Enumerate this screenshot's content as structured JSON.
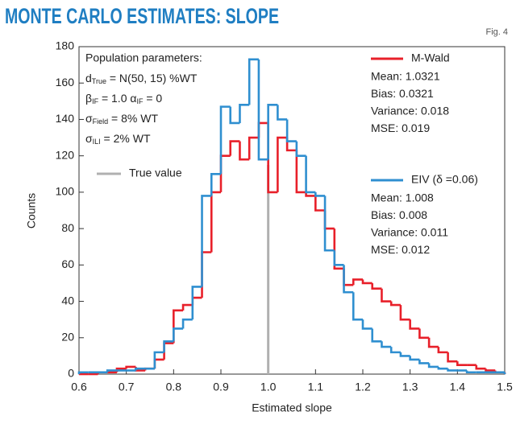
{
  "chart_data": {
    "type": "histogram",
    "title": "MONTE CARLO ESTIMATES: SLOPE",
    "figure_label": "Fig. 4",
    "x_label": "Estimated slope",
    "y_label": "Counts",
    "xlim": [
      0.6,
      1.5
    ],
    "ylim": [
      0,
      180
    ],
    "xticks": [
      0.6,
      0.7,
      0.8,
      0.9,
      {
        "value": 1,
        "label": "1.0"
      },
      1.1,
      1.2,
      1.3,
      1.4,
      1.5
    ],
    "yticks": [
      0,
      20,
      40,
      60,
      80,
      100,
      120,
      140,
      160,
      180
    ],
    "bins": [
      0.6,
      0.62,
      0.64,
      0.66,
      0.68,
      0.7,
      0.72,
      0.74,
      0.76,
      0.78,
      0.8,
      0.82,
      0.84,
      0.86,
      0.88,
      0.9,
      0.92,
      0.94,
      0.96,
      0.98,
      1,
      1.02,
      1.04,
      1.06,
      1.08,
      1.1,
      1.12,
      1.14,
      1.16,
      1.18,
      1.2,
      1.22,
      1.24,
      1.26,
      1.28,
      1.3,
      1.32,
      1.34,
      1.36,
      1.38,
      1.4,
      1.42,
      1.44,
      1.46,
      1.48,
      1.5
    ],
    "series": [
      {
        "name": "M-Wald",
        "color": "#e8202a",
        "values": [
          0,
          0,
          1,
          1,
          3,
          4,
          2,
          3,
          8,
          17,
          35,
          38,
          42,
          67,
          100,
          120,
          128,
          118,
          130,
          138,
          100,
          130,
          123,
          100,
          98,
          90,
          80,
          58,
          49,
          52,
          50,
          47,
          40,
          38,
          30,
          25,
          20,
          15,
          12,
          7,
          5,
          5,
          3,
          2,
          1
        ],
        "stats": [
          "Mean: 1.0321",
          "Bias: 0.0321",
          "Variance: 0.018",
          "MSE: 0.019"
        ]
      },
      {
        "name": "EIV (δ =0.06)",
        "color": "#2f8fd0",
        "values": [
          1,
          1,
          1,
          2,
          2,
          2,
          3,
          3,
          12,
          18,
          25,
          30,
          48,
          98,
          110,
          147,
          138,
          148,
          173,
          118,
          148,
          140,
          128,
          120,
          100,
          98,
          68,
          60,
          45,
          30,
          25,
          18,
          15,
          12,
          10,
          8,
          6,
          4,
          3,
          2,
          2,
          1,
          1,
          1,
          1
        ],
        "stats": [
          "Mean: 1.008",
          "Bias: 0.008",
          "Variance: 0.011",
          "MSE: 0.012"
        ]
      }
    ],
    "true_value": {
      "label": "True value",
      "x": 1.0,
      "y": [
        0,
        115
      ],
      "color": "#b0b0b0"
    },
    "parameters": {
      "heading": "Population parameters:",
      "lines": [
        [
          {
            "t": "d"
          },
          {
            "sub": "True"
          },
          {
            "t": " = N(50, 15) %WT"
          }
        ],
        [
          {
            "t": "β"
          },
          {
            "sub": "IF"
          },
          {
            "t": " = 1.0 α"
          },
          {
            "sub": "IF"
          },
          {
            "t": " = 0"
          }
        ],
        [
          {
            "t": "σ"
          },
          {
            "sub": "Field"
          },
          {
            "t": " = 8% WT"
          }
        ],
        [
          {
            "t": "σ"
          },
          {
            "sub": "ILI"
          },
          {
            "t": " = 2% WT"
          }
        ]
      ]
    }
  }
}
